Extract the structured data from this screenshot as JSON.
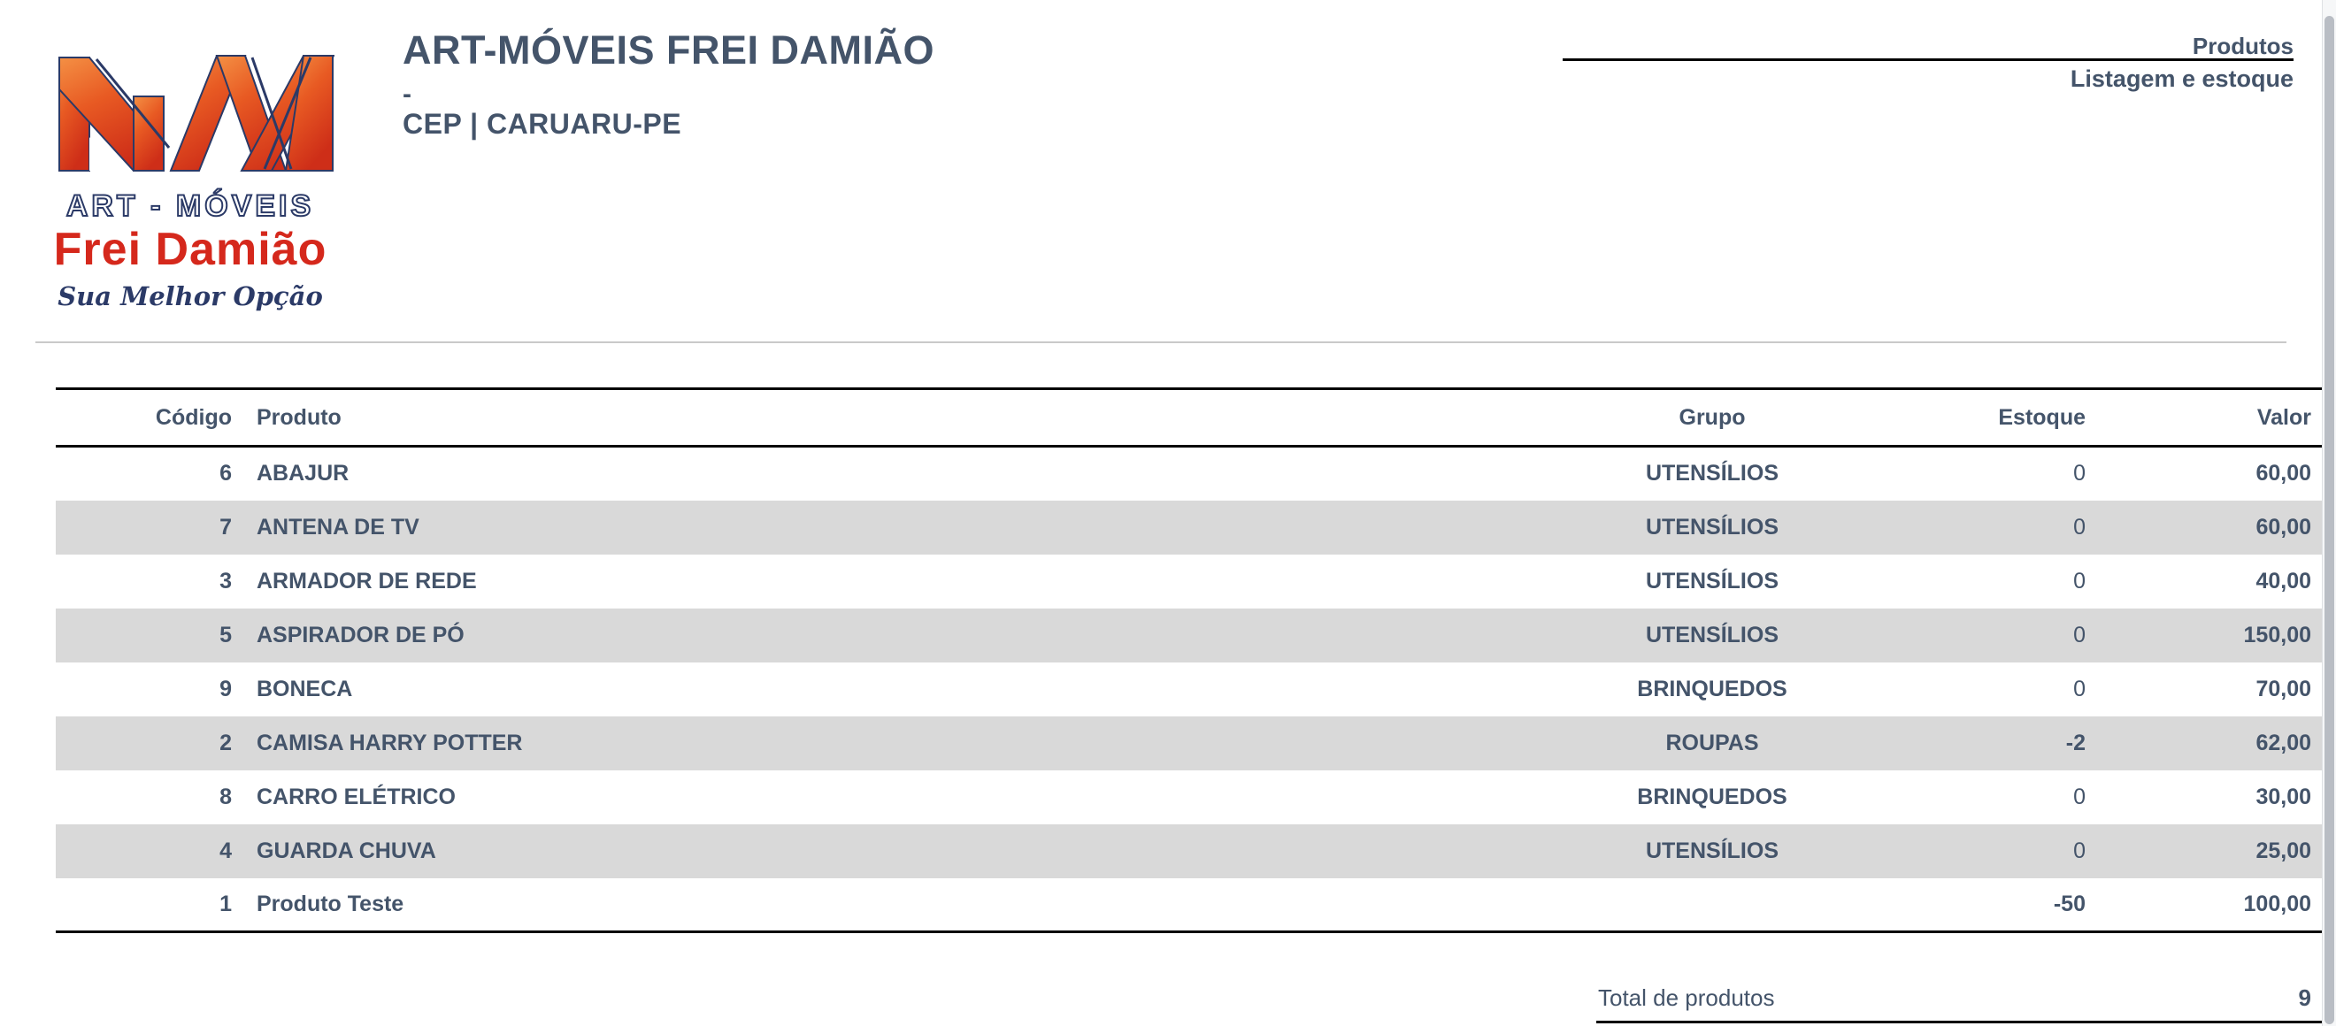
{
  "logo": {
    "line1": "ART - MÓVEIS",
    "line2": "Frei Damião",
    "tagline": "Sua Melhor Opção",
    "colors": {
      "orange": "#F49044",
      "red": "#CE2E18",
      "navy": "#2B3A67",
      "brand_red": "#D5281C"
    }
  },
  "header": {
    "company_title": "ART-MÓVEIS FREI DAMIÃO",
    "company_dash": "-",
    "company_cep": "CEP | CARUARU-PE",
    "report_title": "Produtos",
    "report_subtitle": "Listagem e estoque"
  },
  "table": {
    "columns": [
      "Código",
      "Produto",
      "Grupo",
      "Estoque",
      "Valor"
    ],
    "rows": [
      {
        "codigo": "6",
        "produto": "ABAJUR",
        "grupo": "UTENSÍLIOS",
        "estoque": "0",
        "valor": "60,00"
      },
      {
        "codigo": "7",
        "produto": "ANTENA DE TV",
        "grupo": "UTENSÍLIOS",
        "estoque": "0",
        "valor": "60,00"
      },
      {
        "codigo": "3",
        "produto": "ARMADOR DE REDE",
        "grupo": "UTENSÍLIOS",
        "estoque": "0",
        "valor": "40,00"
      },
      {
        "codigo": "5",
        "produto": "ASPIRADOR DE PÓ",
        "grupo": "UTENSÍLIOS",
        "estoque": "0",
        "valor": "150,00"
      },
      {
        "codigo": "9",
        "produto": "BONECA",
        "grupo": "BRINQUEDOS",
        "estoque": "0",
        "valor": "70,00"
      },
      {
        "codigo": "2",
        "produto": "CAMISA HARRY POTTER",
        "grupo": "ROUPAS",
        "estoque": "-2",
        "valor": "62,00"
      },
      {
        "codigo": "8",
        "produto": "CARRO ELÉTRICO",
        "grupo": "BRINQUEDOS",
        "estoque": "0",
        "valor": "30,00"
      },
      {
        "codigo": "4",
        "produto": "GUARDA CHUVA",
        "grupo": "UTENSÍLIOS",
        "estoque": "0",
        "valor": "25,00"
      },
      {
        "codigo": "1",
        "produto": "Produto Teste",
        "grupo": "",
        "estoque": "-50",
        "valor": "100,00"
      }
    ]
  },
  "footer": {
    "total_label": "Total de produtos",
    "total_value": "9"
  },
  "colors": {
    "text": "#44546A",
    "row_alt": "#D9D9D9",
    "rule_black": "#000000",
    "separator_gray": "#C9C9C9"
  }
}
